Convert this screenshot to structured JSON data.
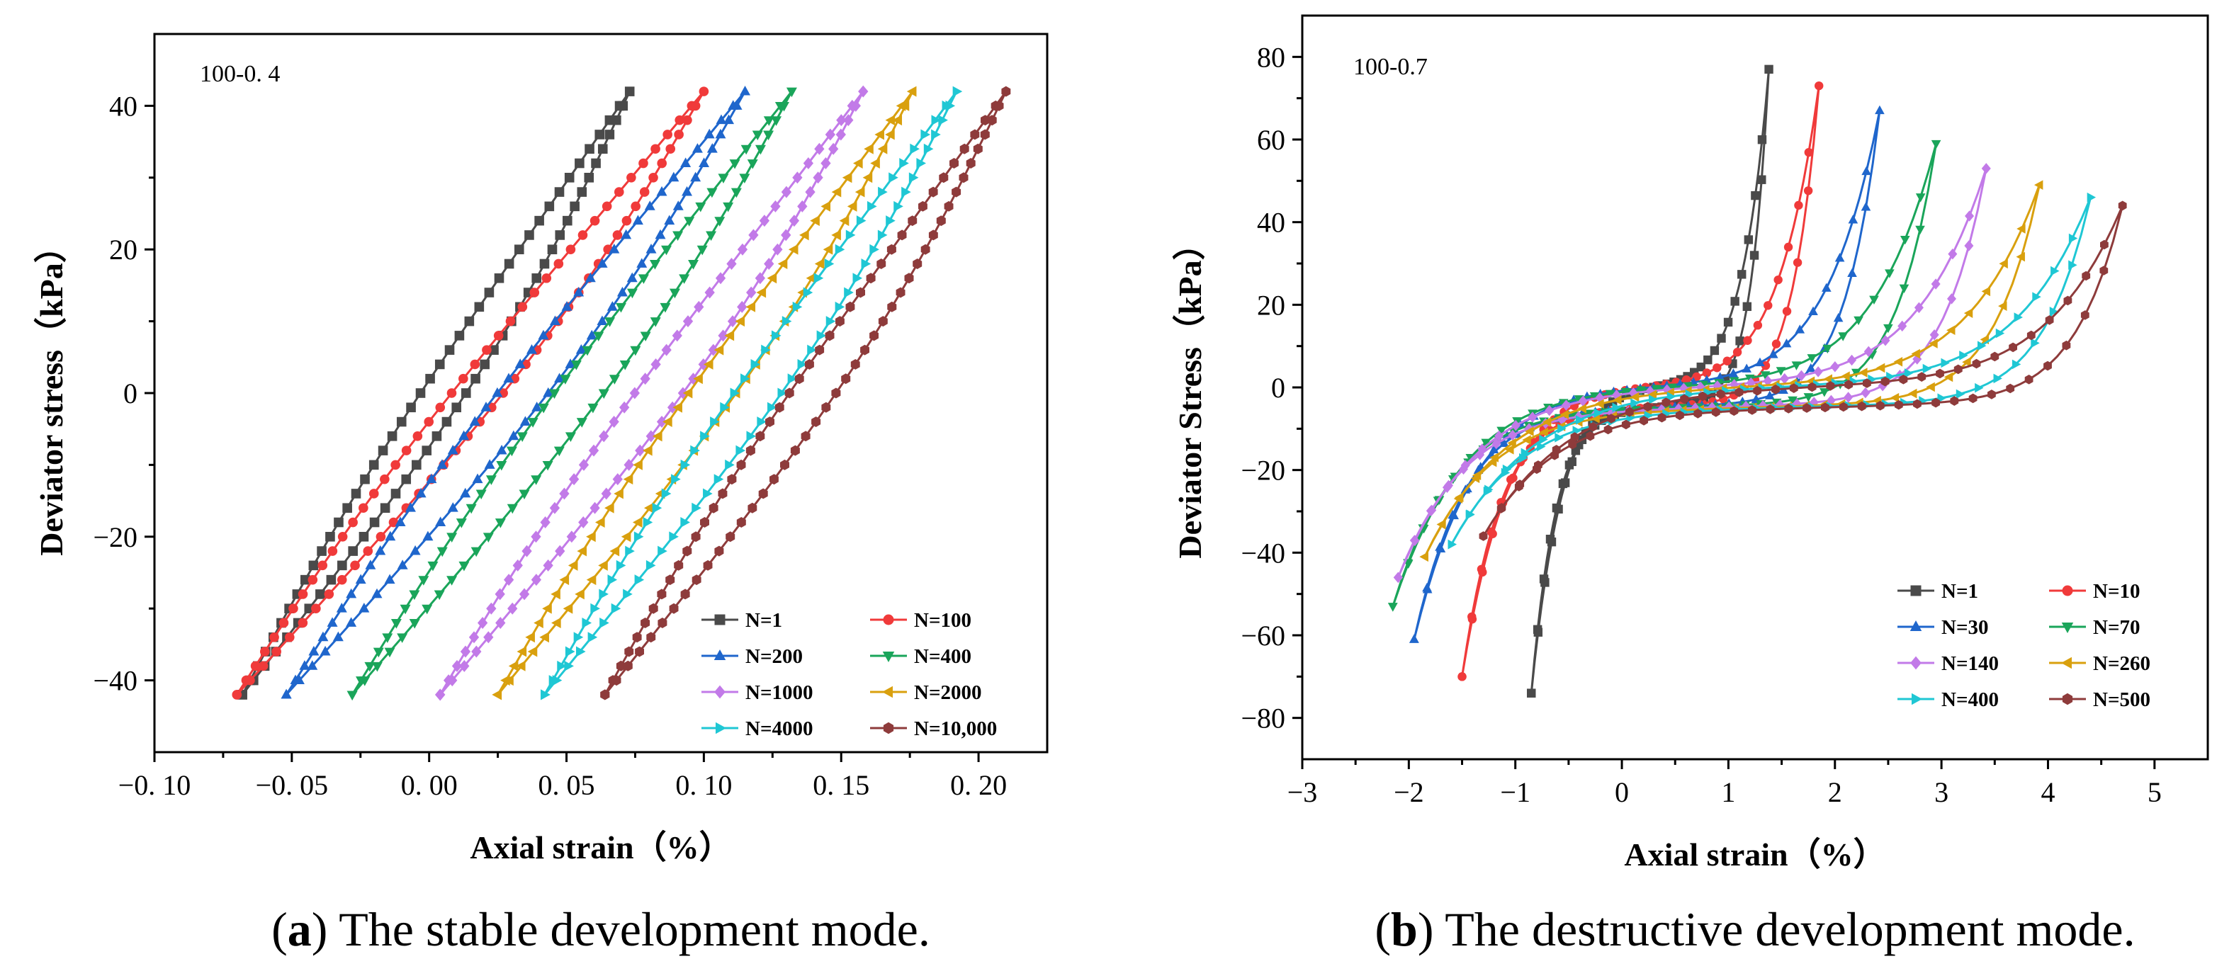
{
  "chart_data": [
    {
      "type": "line",
      "panel_tag": "100-0. 4",
      "xlabel": "Axial strain（%）",
      "ylabel": "Deviator stress（kPa）",
      "xlim": [
        -0.1,
        0.225
      ],
      "ylim": [
        -50,
        50
      ],
      "xticks": [
        -0.1,
        -0.05,
        0.0,
        0.05,
        0.1,
        0.15,
        0.2
      ],
      "xtick_labels": [
        "−0. 10",
        "−0. 05",
        "0. 00",
        "0. 05",
        "0. 10",
        "0. 15",
        "0. 20"
      ],
      "yticks": [
        -40,
        -20,
        0,
        20,
        40
      ],
      "ytick_labels": [
        "−40",
        "−20",
        "0",
        "20",
        "40"
      ],
      "legend_position": "bottom-right",
      "caption_letter": "a",
      "caption_text": " The stable development mode.",
      "series": [
        {
          "name": "N=1",
          "color": "#4a4a4a",
          "marker": "square",
          "min_strain": -0.068,
          "max_strain": 0.073
        },
        {
          "name": "N=100",
          "color": "#f03a3a",
          "marker": "circle",
          "min_strain": -0.07,
          "max_strain": 0.1
        },
        {
          "name": "N=200",
          "color": "#1f66cc",
          "marker": "triangle-up",
          "min_strain": -0.052,
          "max_strain": 0.115
        },
        {
          "name": "N=400",
          "color": "#1aa55a",
          "marker": "triangle-down",
          "min_strain": -0.028,
          "max_strain": 0.132
        },
        {
          "name": "N=1000",
          "color": "#c27ae8",
          "marker": "diamond",
          "min_strain": 0.004,
          "max_strain": 0.158
        },
        {
          "name": "N=2000",
          "color": "#d9a00e",
          "marker": "triangle-left",
          "min_strain": 0.025,
          "max_strain": 0.176
        },
        {
          "name": "N=4000",
          "color": "#1fc7d4",
          "marker": "triangle-right",
          "min_strain": 0.042,
          "max_strain": 0.192
        },
        {
          "name": "N=10,000",
          "color": "#8e3b3b",
          "marker": "hexagon",
          "min_strain": 0.064,
          "max_strain": 0.21
        }
      ]
    },
    {
      "type": "line",
      "panel_tag": "100-0.7",
      "xlabel": "Axial strain（%）",
      "ylabel": "Deviator Stress（kPa）",
      "xlim": [
        -3,
        5.5
      ],
      "ylim": [
        -90,
        90
      ],
      "xticks": [
        -3,
        -2,
        -1,
        0,
        1,
        2,
        3,
        4,
        5
      ],
      "xtick_labels": [
        "−3",
        "−2",
        "−1",
        "0",
        "1",
        "2",
        "3",
        "4",
        "5"
      ],
      "yticks": [
        -80,
        -60,
        -40,
        -20,
        0,
        20,
        40,
        60,
        80
      ],
      "ytick_labels": [
        "−80",
        "−60",
        "−40",
        "−20",
        "0",
        "20",
        "40",
        "60",
        "80"
      ],
      "legend_position": "bottom-right",
      "caption_letter": "b",
      "caption_text": " The destructive development mode.",
      "series": [
        {
          "name": "N=1",
          "color": "#4a4a4a",
          "marker": "square",
          "min_strain": -0.85,
          "max_strain": 1.38,
          "min_stress": -74,
          "max_stress": 77
        },
        {
          "name": "N=10",
          "color": "#f03a3a",
          "marker": "circle",
          "min_strain": -1.5,
          "max_strain": 1.85,
          "min_stress": -70,
          "max_stress": 73
        },
        {
          "name": "N=30",
          "color": "#1f66cc",
          "marker": "triangle-up",
          "min_strain": -1.95,
          "max_strain": 2.42,
          "min_stress": -61,
          "max_stress": 67
        },
        {
          "name": "N=70",
          "color": "#1aa55a",
          "marker": "triangle-down",
          "min_strain": -2.15,
          "max_strain": 2.95,
          "min_stress": -53,
          "max_stress": 59
        },
        {
          "name": "N=140",
          "color": "#c27ae8",
          "marker": "diamond",
          "min_strain": -2.1,
          "max_strain": 3.42,
          "min_stress": -46,
          "max_stress": 53
        },
        {
          "name": "N=260",
          "color": "#d9a00e",
          "marker": "triangle-left",
          "min_strain": -1.85,
          "max_strain": 3.92,
          "min_stress": -41,
          "max_stress": 49
        },
        {
          "name": "N=400",
          "color": "#1fc7d4",
          "marker": "triangle-right",
          "min_strain": -1.6,
          "max_strain": 4.4,
          "min_stress": -38,
          "max_stress": 46
        },
        {
          "name": "N=500",
          "color": "#8e3b3b",
          "marker": "hexagon",
          "min_strain": -1.3,
          "max_strain": 4.7,
          "min_stress": -36,
          "max_stress": 44
        }
      ]
    }
  ]
}
